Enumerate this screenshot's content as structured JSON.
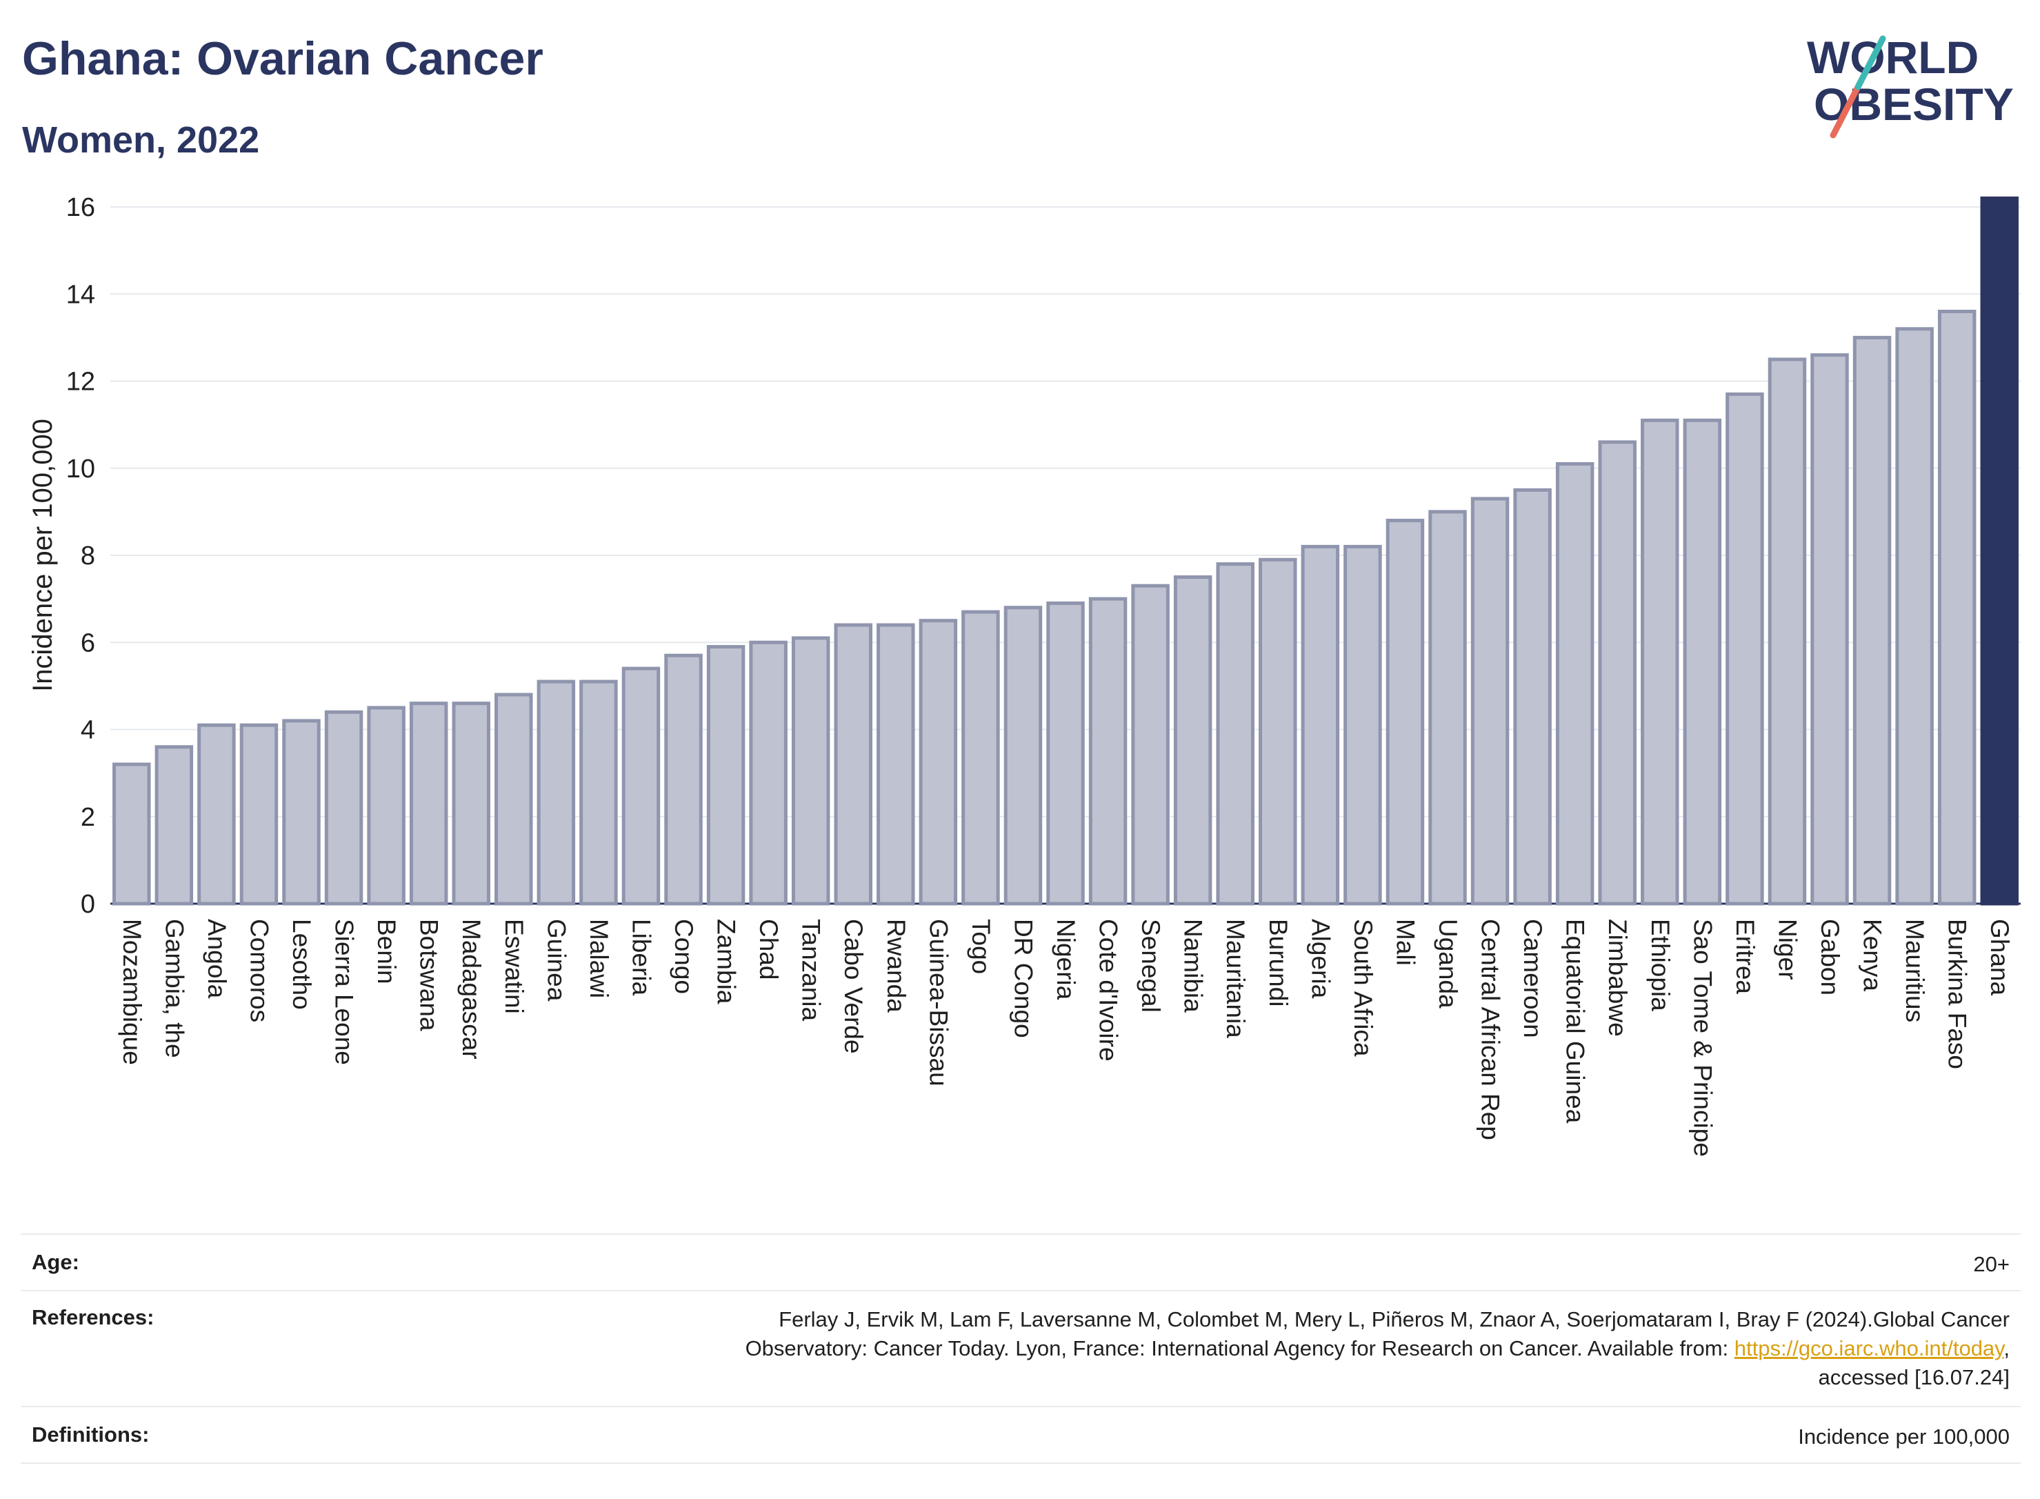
{
  "title": "Ghana: Ovarian Cancer",
  "subtitle": "Women, 2022",
  "logo": {
    "line1": "WORLD",
    "line2": "OBESITY",
    "colors": [
      "#2b3561",
      "#3cb9b4",
      "#e86b5a"
    ]
  },
  "chart_data": {
    "type": "bar",
    "ylabel": "Incidence per 100,000",
    "xlabel": "",
    "ylim": [
      0,
      16
    ],
    "yticks": [
      0,
      2,
      4,
      6,
      8,
      10,
      12,
      14,
      16
    ],
    "grid": true,
    "categories": [
      "Mozambique",
      "Gambia, the",
      "Angola",
      "Comoros",
      "Lesotho",
      "Sierra Leone",
      "Benin",
      "Botswana",
      "Madagascar",
      "Eswatini",
      "Guinea",
      "Malawi",
      "Liberia",
      "Congo",
      "Zambia",
      "Chad",
      "Tanzania",
      "Cabo Verde",
      "Rwanda",
      "Guinea-Bissau",
      "Togo",
      "DR Congo",
      "Nigeria",
      "Cote d'Ivoire",
      "Senegal",
      "Namibia",
      "Mauritania",
      "Burundi",
      "Algeria",
      "South Africa",
      "Mali",
      "Uganda",
      "Central African Rep",
      "Cameroon",
      "Equatorial Guinea",
      "Zimbabwe",
      "Ethiopia",
      "Sao Tome & Principe",
      "Eritrea",
      "Niger",
      "Gabon",
      "Kenya",
      "Mauritius",
      "Burkina Faso",
      "Ghana"
    ],
    "values": [
      3.2,
      3.6,
      4.1,
      4.1,
      4.2,
      4.4,
      4.5,
      4.6,
      4.6,
      4.8,
      5.1,
      5.1,
      5.4,
      5.7,
      5.9,
      6.0,
      6.1,
      6.4,
      6.4,
      6.5,
      6.7,
      6.8,
      6.9,
      7.0,
      7.3,
      7.5,
      7.8,
      7.9,
      8.2,
      8.2,
      8.8,
      9.0,
      9.3,
      9.5,
      10.1,
      10.6,
      11.1,
      11.1,
      11.7,
      12.5,
      12.6,
      13.0,
      13.2,
      13.6,
      16.2
    ],
    "highlight": "Ghana",
    "colors": {
      "bar": "#bfc2d0",
      "bar_edge": "#8f95ad",
      "highlight": "#2b3561",
      "grid": "#e6e8ec"
    }
  },
  "info": {
    "age_label": "Age:",
    "age_value": "20+",
    "references_label": "References:",
    "references_line1": "Ferlay J, Ervik M, Lam F, Laversanne M, Colombet M, Mery L, Piñeros M, Znaor A, Soerjomataram I, Bray F (2024).Global Cancer",
    "references_line2_pre": "Observatory: Cancer Today. Lyon, France: International Agency for Research on Cancer. Available from: ",
    "references_link": "https://gco.iarc.who.int/today",
    "references_line2_post": ",",
    "references_line3": "accessed [16.07.24]",
    "definitions_label": "Definitions:",
    "definitions_value": "Incidence per 100,000"
  }
}
